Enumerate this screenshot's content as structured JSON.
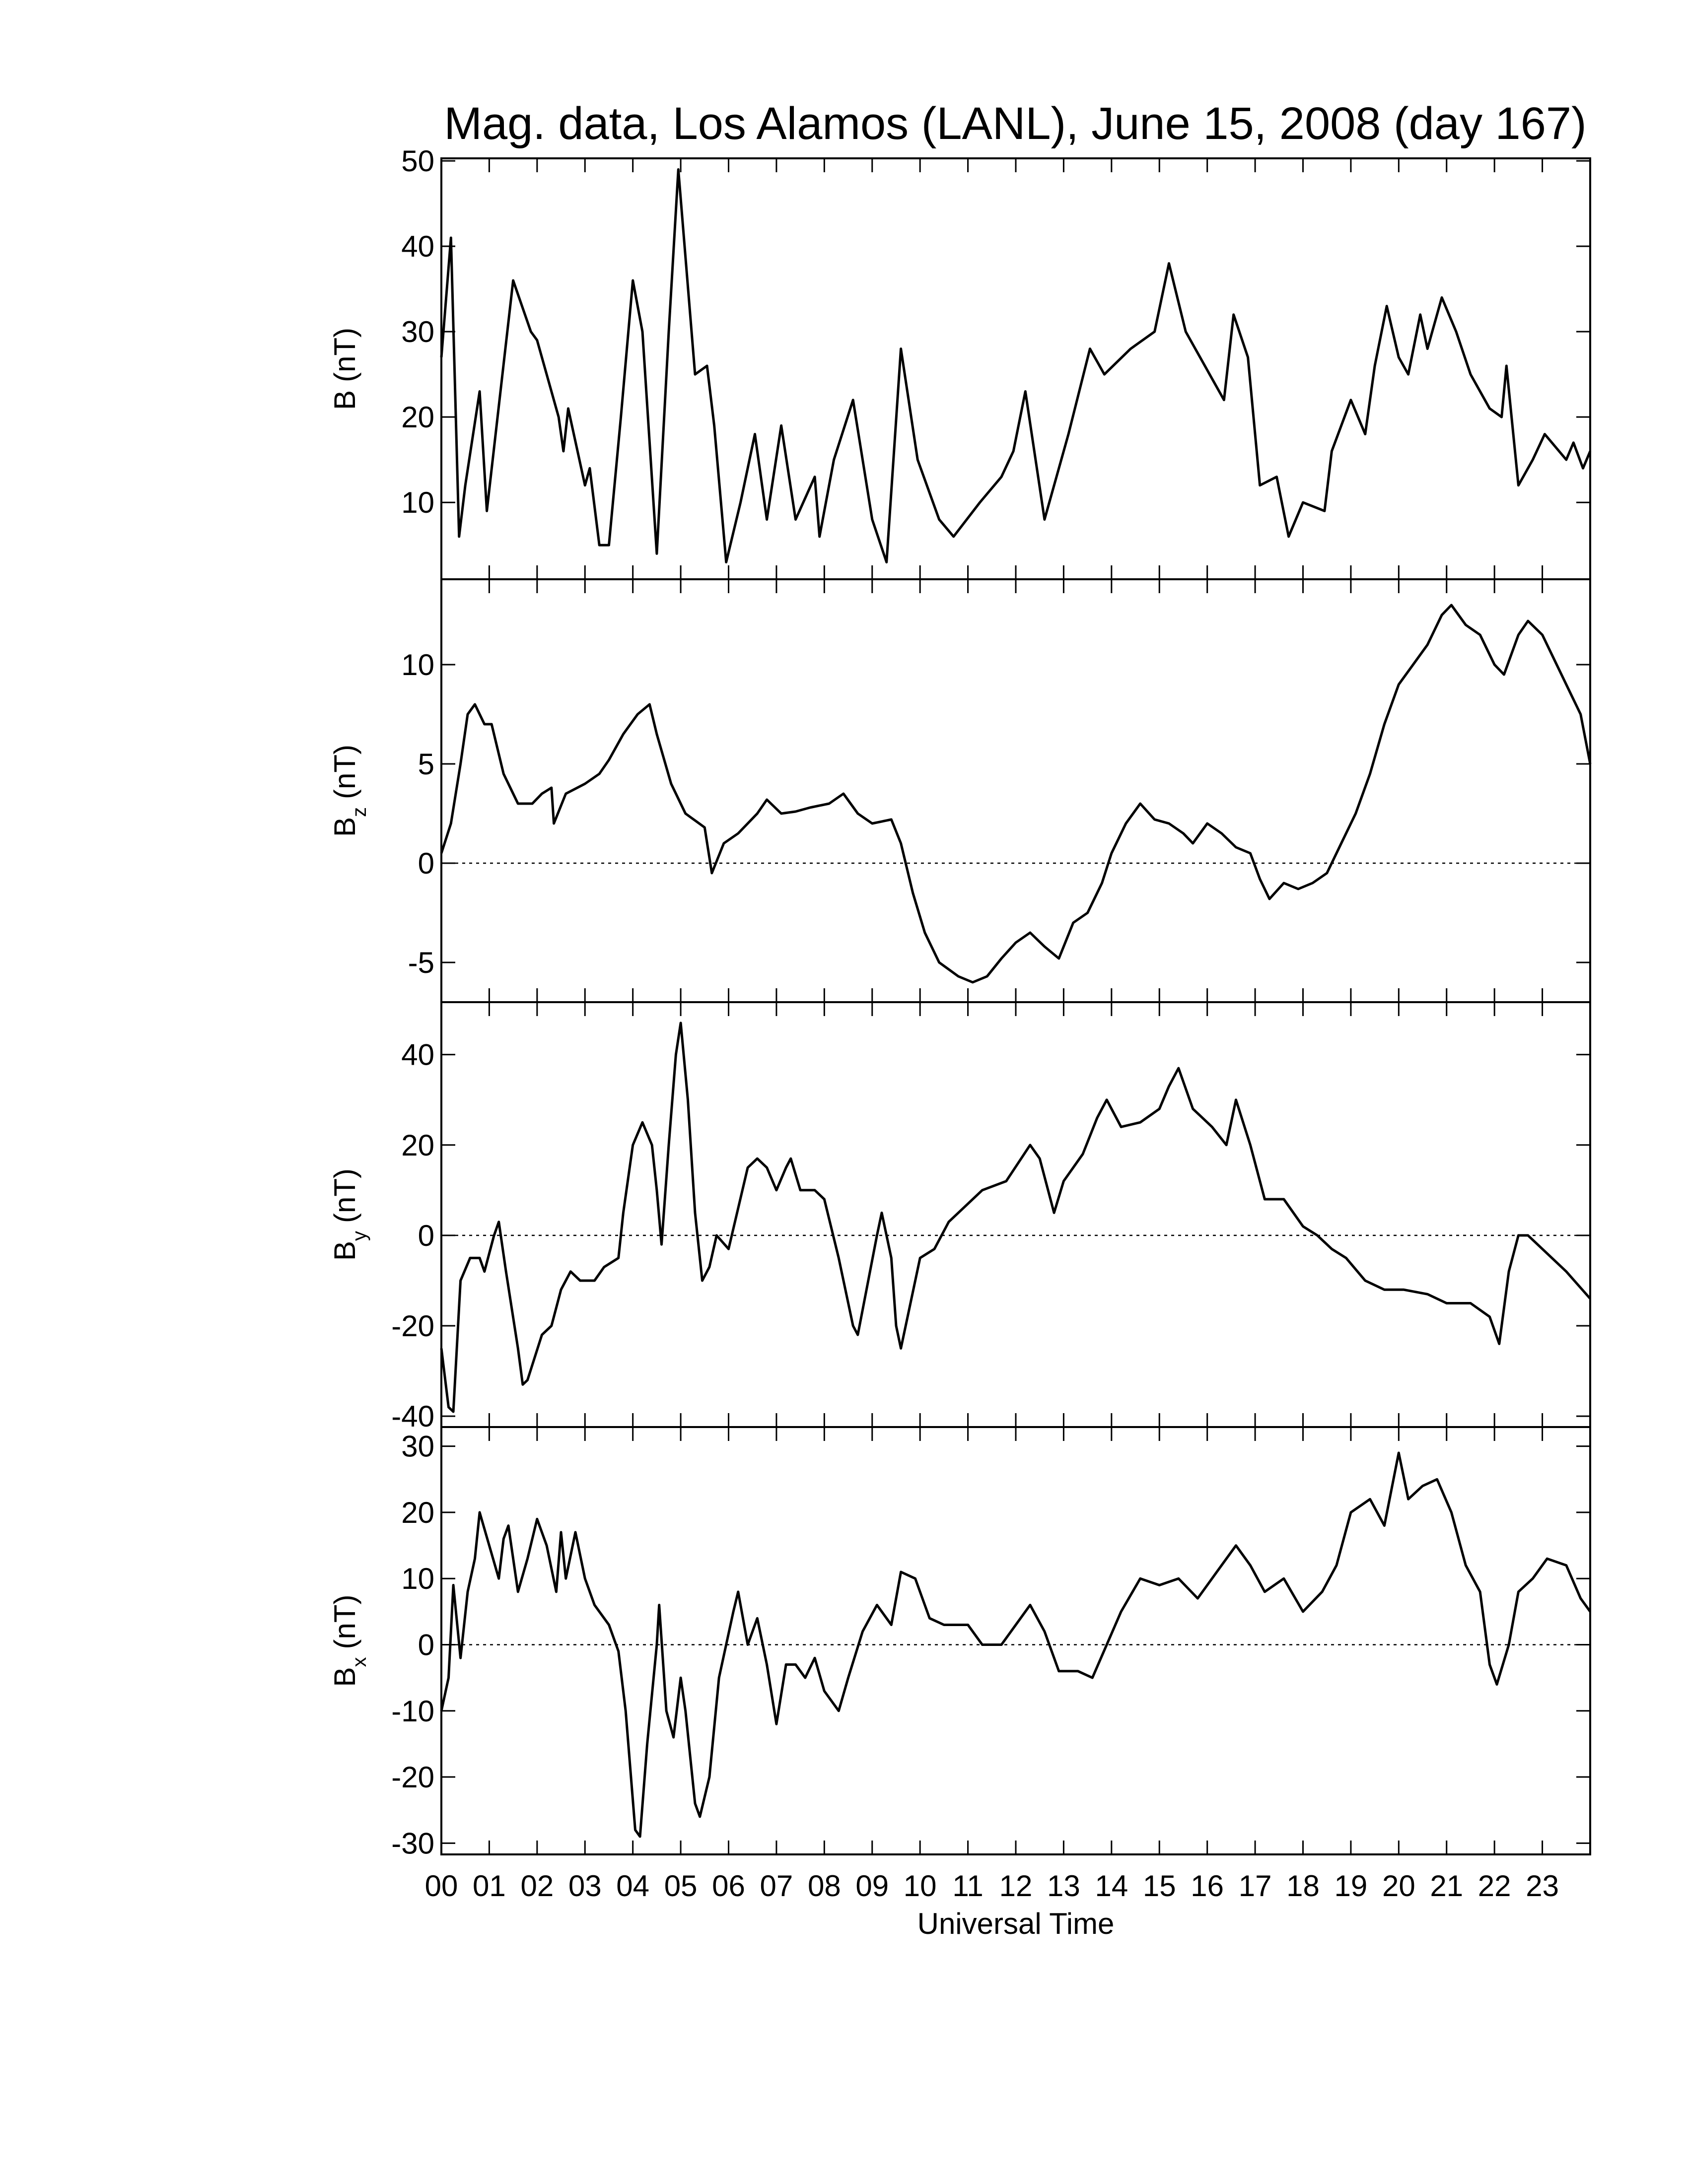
{
  "chart_data": [
    {
      "type": "line",
      "title": "Mag. data, Los Alamos (LANL), June 15, 2008 (day 167)",
      "ylabel": "B",
      "ylabel_unit": "(nT)",
      "color": "#000000",
      "zero_line": false,
      "xlim": [
        0,
        24
      ],
      "ylim": [
        1,
        50.3
      ],
      "yticks": [
        10,
        20,
        30,
        40,
        50
      ],
      "x": [
        0,
        0.2,
        0.37,
        0.5,
        0.8,
        0.95,
        1.5,
        1.87,
        2.0,
        2.45,
        2.55,
        2.65,
        3.0,
        3.1,
        3.3,
        3.5,
        3.75,
        4.0,
        4.2,
        4.5,
        4.75,
        4.95,
        5.3,
        5.55,
        5.7,
        5.95,
        6.25,
        6.55,
        6.8,
        7.1,
        7.4,
        7.8,
        7.9,
        8.2,
        8.6,
        9.0,
        9.3,
        9.6,
        9.95,
        10.4,
        10.7,
        11.25,
        11.7,
        11.95,
        12.2,
        12.6,
        13.1,
        13.55,
        13.85,
        14.4,
        14.9,
        15.2,
        15.55,
        16.15,
        16.35,
        16.55,
        16.85,
        17.1,
        17.45,
        17.7,
        18.0,
        18.45,
        18.6,
        19.0,
        19.3,
        19.5,
        19.75,
        20.0,
        20.2,
        20.45,
        20.6,
        20.9,
        21.2,
        21.5,
        21.9,
        22.15,
        22.25,
        22.5,
        22.8,
        23.05,
        23.5,
        23.65,
        23.85,
        24
      ],
      "values": [
        27,
        41,
        6,
        12,
        23,
        9,
        36,
        30,
        29,
        20,
        16,
        21,
        12,
        14,
        5,
        5,
        20,
        36,
        30,
        4,
        30,
        49,
        25,
        26,
        19,
        3,
        10,
        18,
        8,
        19,
        8,
        13,
        6,
        15,
        22,
        8,
        3,
        28,
        15,
        8,
        6,
        10,
        13,
        16,
        23,
        8,
        18,
        28,
        25,
        28,
        30,
        38,
        30,
        24,
        22,
        32,
        27,
        12,
        13,
        6,
        10,
        9,
        16,
        22,
        18,
        26,
        33,
        27,
        25,
        32,
        28,
        34,
        30,
        25,
        21,
        20,
        26,
        12,
        15,
        18,
        15,
        17,
        14,
        16
      ]
    },
    {
      "type": "line",
      "ylabel": "B",
      "ylabel_sub": "z",
      "ylabel_unit": "(nT)",
      "color": "#000000",
      "zero_line": true,
      "xlim": [
        0,
        24
      ],
      "ylim": [
        -7,
        14.3
      ],
      "yticks": [
        -5,
        0,
        5,
        10
      ],
      "x": [
        0,
        0.2,
        0.4,
        0.55,
        0.7,
        0.9,
        1.05,
        1.3,
        1.6,
        1.9,
        2.1,
        2.3,
        2.35,
        2.6,
        3.0,
        3.3,
        3.5,
        3.8,
        4.1,
        4.35,
        4.5,
        4.8,
        5.1,
        5.5,
        5.65,
        5.9,
        6.2,
        6.6,
        6.8,
        7.1,
        7.4,
        7.7,
        8.1,
        8.4,
        8.7,
        9.0,
        9.4,
        9.6,
        9.85,
        10.1,
        10.4,
        10.8,
        11.1,
        11.4,
        11.7,
        12.0,
        12.3,
        12.6,
        12.9,
        13.2,
        13.5,
        13.8,
        14.0,
        14.3,
        14.6,
        14.9,
        15.2,
        15.5,
        15.7,
        16.0,
        16.3,
        16.6,
        16.9,
        17.1,
        17.3,
        17.6,
        17.9,
        18.2,
        18.5,
        18.8,
        19.1,
        19.4,
        19.7,
        20.0,
        20.3,
        20.6,
        20.9,
        21.1,
        21.4,
        21.7,
        22.0,
        22.2,
        22.5,
        22.7,
        23.0,
        23.3,
        23.6,
        23.8,
        24
      ],
      "values": [
        0.5,
        2,
        5,
        7.5,
        8,
        7,
        7,
        4.5,
        3,
        3,
        3.5,
        3.8,
        2,
        3.5,
        4,
        4.5,
        5.2,
        6.5,
        7.5,
        8,
        6.5,
        4,
        2.5,
        1.8,
        -0.5,
        1,
        1.5,
        2.5,
        3.2,
        2.5,
        2.6,
        2.8,
        3.0,
        3.5,
        2.5,
        2.0,
        2.2,
        1.0,
        -1.5,
        -3.5,
        -5,
        -5.7,
        -6,
        -5.7,
        -4.8,
        -4,
        -3.5,
        -4.2,
        -4.8,
        -3.0,
        -2.5,
        -1,
        0.5,
        2.0,
        3.0,
        2.2,
        2.0,
        1.5,
        1.0,
        2.0,
        1.5,
        0.8,
        0.5,
        -0.8,
        -1.8,
        -1.0,
        -1.3,
        -1.0,
        -0.5,
        1,
        2.5,
        4.5,
        7,
        9,
        10,
        11,
        12.5,
        13,
        12,
        11.5,
        10,
        9.5,
        11.5,
        12.2,
        11.5,
        10,
        8.5,
        7.5,
        5
      ]
    },
    {
      "type": "line",
      "ylabel": "B",
      "ylabel_sub": "y",
      "ylabel_unit": "(nT)",
      "color": "#000000",
      "zero_line": true,
      "xlim": [
        0,
        24
      ],
      "ylim": [
        -42.4,
        51.6
      ],
      "yticks": [
        -40,
        -20,
        0,
        20,
        40
      ],
      "x": [
        0,
        0.15,
        0.25,
        0.4,
        0.6,
        0.8,
        0.9,
        1.0,
        1.1,
        1.2,
        1.35,
        1.6,
        1.7,
        1.8,
        2.1,
        2.3,
        2.5,
        2.7,
        2.9,
        3.2,
        3.4,
        3.7,
        3.8,
        4.0,
        4.2,
        4.4,
        4.5,
        4.6,
        4.75,
        4.9,
        5.0,
        5.15,
        5.3,
        5.45,
        5.6,
        5.75,
        6.0,
        6.4,
        6.6,
        6.8,
        7.0,
        7.2,
        7.3,
        7.5,
        7.8,
        8.0,
        8.3,
        8.6,
        8.7,
        9.1,
        9.2,
        9.4,
        9.5,
        9.6,
        9.8,
        10.0,
        10.3,
        10.6,
        10.9,
        11.3,
        11.8,
        12.3,
        12.5,
        12.8,
        13.0,
        13.4,
        13.7,
        13.9,
        14.2,
        14.6,
        15.0,
        15.2,
        15.4,
        15.7,
        16.1,
        16.4,
        16.6,
        16.9,
        17.2,
        17.6,
        18.0,
        18.3,
        18.6,
        18.9,
        19.3,
        19.7,
        20.1,
        20.6,
        21.0,
        21.5,
        21.9,
        22.1,
        22.3,
        22.5,
        22.7,
        23.0,
        23.5,
        24
      ],
      "values": [
        -25,
        -38,
        -39,
        -10,
        -5,
        -5,
        -8,
        -4,
        0,
        3,
        -8,
        -25,
        -33,
        -32,
        -22,
        -20,
        -12,
        -8,
        -10,
        -10,
        -7,
        -5,
        5,
        20,
        25,
        20,
        10,
        -2,
        20,
        40,
        47,
        30,
        5,
        -10,
        -7,
        0,
        -3,
        15,
        17,
        15,
        10,
        15,
        17,
        10,
        10,
        8,
        -5,
        -20,
        -22,
        0,
        5,
        -5,
        -20,
        -25,
        -15,
        -5,
        -3,
        3,
        6,
        10,
        12,
        20,
        17,
        5,
        12,
        18,
        26,
        30,
        24,
        25,
        28,
        33,
        37,
        28,
        24,
        20,
        30,
        20,
        8,
        8,
        2,
        0,
        -3,
        -5,
        -10,
        -12,
        -12,
        -13,
        -15,
        -15,
        -18,
        -24,
        -8,
        0,
        0,
        -3,
        -8,
        -14
      ]
    },
    {
      "type": "line",
      "ylabel": "B",
      "ylabel_sub": "x",
      "ylabel_unit": "(nT)",
      "color": "#000000",
      "zero_line": true,
      "xlabel": "Universal Time",
      "xlim": [
        0,
        24
      ],
      "ylim": [
        -31.7,
        32.9
      ],
      "yticks": [
        -30,
        -20,
        -10,
        0,
        10,
        20,
        30
      ],
      "xticks": [
        {
          "value": 0,
          "label": "00"
        },
        {
          "value": 1,
          "label": "01"
        },
        {
          "value": 2,
          "label": "02"
        },
        {
          "value": 3,
          "label": "03"
        },
        {
          "value": 4,
          "label": "04"
        },
        {
          "value": 5,
          "label": "05"
        },
        {
          "value": 6,
          "label": "06"
        },
        {
          "value": 7,
          "label": "07"
        },
        {
          "value": 8,
          "label": "08"
        },
        {
          "value": 9,
          "label": "09"
        },
        {
          "value": 10,
          "label": "10"
        },
        {
          "value": 11,
          "label": "11"
        },
        {
          "value": 12,
          "label": "12"
        },
        {
          "value": 13,
          "label": "13"
        },
        {
          "value": 14,
          "label": "14"
        },
        {
          "value": 15,
          "label": "15"
        },
        {
          "value": 16,
          "label": "16"
        },
        {
          "value": 17,
          "label": "17"
        },
        {
          "value": 18,
          "label": "18"
        },
        {
          "value": 19,
          "label": "19"
        },
        {
          "value": 20,
          "label": "20"
        },
        {
          "value": 21,
          "label": "21"
        },
        {
          "value": 22,
          "label": "22"
        },
        {
          "value": 23,
          "label": "23"
        }
      ],
      "x": [
        0,
        0.15,
        0.25,
        0.4,
        0.55,
        0.7,
        0.8,
        1.0,
        1.2,
        1.3,
        1.4,
        1.6,
        1.8,
        2.0,
        2.2,
        2.4,
        2.5,
        2.6,
        2.8,
        3.0,
        3.2,
        3.5,
        3.7,
        3.85,
        4.05,
        4.15,
        4.3,
        4.5,
        4.55,
        4.7,
        4.85,
        5.0,
        5.1,
        5.3,
        5.4,
        5.6,
        5.8,
        6.1,
        6.2,
        6.4,
        6.6,
        6.8,
        7.0,
        7.2,
        7.4,
        7.6,
        7.8,
        8.0,
        8.3,
        8.5,
        8.8,
        9.1,
        9.4,
        9.6,
        9.9,
        10.2,
        10.5,
        11.0,
        11.3,
        11.7,
        12.0,
        12.3,
        12.6,
        12.9,
        13.3,
        13.6,
        13.9,
        14.2,
        14.6,
        15.0,
        15.4,
        15.8,
        16.2,
        16.6,
        16.9,
        17.2,
        17.6,
        18.0,
        18.4,
        18.7,
        19.0,
        19.4,
        19.7,
        20.0,
        20.2,
        20.5,
        20.8,
        21.1,
        21.4,
        21.7,
        21.9,
        22.05,
        22.3,
        22.5,
        22.8,
        23.1,
        23.5,
        23.8,
        24
      ],
      "values": [
        -10,
        -5,
        9,
        -2,
        8,
        13,
        20,
        15,
        10,
        16,
        18,
        8,
        13,
        19,
        15,
        8,
        17,
        10,
        17,
        10,
        6,
        3,
        -1,
        -10,
        -28,
        -29,
        -15,
        0,
        6,
        -10,
        -14,
        -5,
        -10,
        -24,
        -26,
        -20,
        -5,
        5,
        8,
        0,
        4,
        -3,
        -12,
        -3,
        -3,
        -5,
        -2,
        -7,
        -10,
        -5,
        2,
        6,
        3,
        11,
        10,
        4,
        3,
        3,
        0,
        0,
        3,
        6,
        2,
        -4,
        -4,
        -5,
        0,
        5,
        10,
        9,
        10,
        7,
        11,
        15,
        12,
        8,
        10,
        5,
        8,
        12,
        20,
        22,
        18,
        29,
        22,
        24,
        25,
        20,
        12,
        8,
        -3,
        -6,
        0,
        8,
        10,
        13,
        12,
        7,
        5
      ]
    }
  ]
}
